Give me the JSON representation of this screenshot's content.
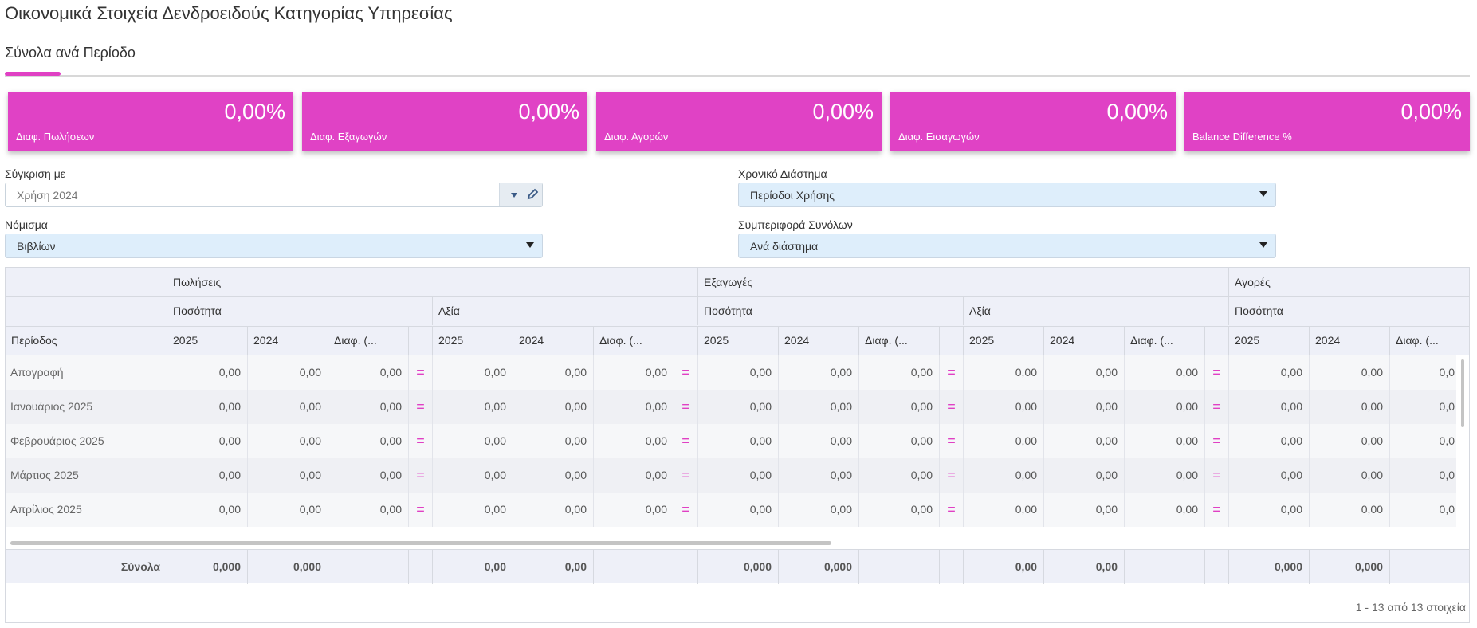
{
  "page": {
    "title": "Οικονομικά Στοιχεία Δενδροειδούς Κατηγορίας Υπηρεσίας",
    "tab": "Σύνολα ανά Περίοδο"
  },
  "kpis": [
    {
      "value": "0,00%",
      "label": "Διαφ. Πωλήσεων"
    },
    {
      "value": "0,00%",
      "label": "Διαφ. Εξαγωγών"
    },
    {
      "value": "0,00%",
      "label": "Διαφ. Αγορών"
    },
    {
      "value": "0,00%",
      "label": "Διαφ. Εισαγωγών"
    },
    {
      "value": "0,00%",
      "label": "Balance Difference %"
    }
  ],
  "filters": {
    "compare_label": "Σύγκριση με",
    "compare_value": "Χρήση 2024",
    "period_label": "Χρονικό Διάστημα",
    "period_value": "Περίοδοι Χρήσης",
    "currency_label": "Νόμισμα",
    "currency_value": "Βιβλίων",
    "totals_label": "Συμπεριφορά Συνόλων",
    "totals_value": "Ανά διάστημα"
  },
  "grid": {
    "period_header": "Περίοδος",
    "groups": [
      "Πωλήσεις",
      "Εξαγωγές",
      "Αγορές"
    ],
    "subgroups": [
      "Ποσότητα",
      "Αξία",
      "Ποσότητα",
      "Αξία",
      "Ποσότητα"
    ],
    "col_2025": "2025",
    "col_2024": "2024",
    "col_diff": "Διαφ. (...",
    "eq_symbol": "=",
    "rows": [
      {
        "period": "Απογραφή",
        "v": "0,00",
        "cut": "0,0"
      },
      {
        "period": "Ιανουάριος 2025",
        "v": "0,00",
        "cut": "0,0"
      },
      {
        "period": "Φεβρουάριος 2025",
        "v": "0,00",
        "cut": "0,0"
      },
      {
        "period": "Μάρτιος 2025",
        "v": "0,00",
        "cut": "0,0"
      },
      {
        "period": "Απρίλιος 2025",
        "v": "0,00",
        "cut": "0,0"
      }
    ],
    "totals_label": "Σύνολα",
    "totals": {
      "qty": "0,000",
      "value": "0,00"
    },
    "pager": "1 - 13 από 13 στοιχεία"
  },
  "colors": {
    "accent": "#e040c4",
    "kpi": "#e042c5",
    "combo": "#deeefb"
  }
}
